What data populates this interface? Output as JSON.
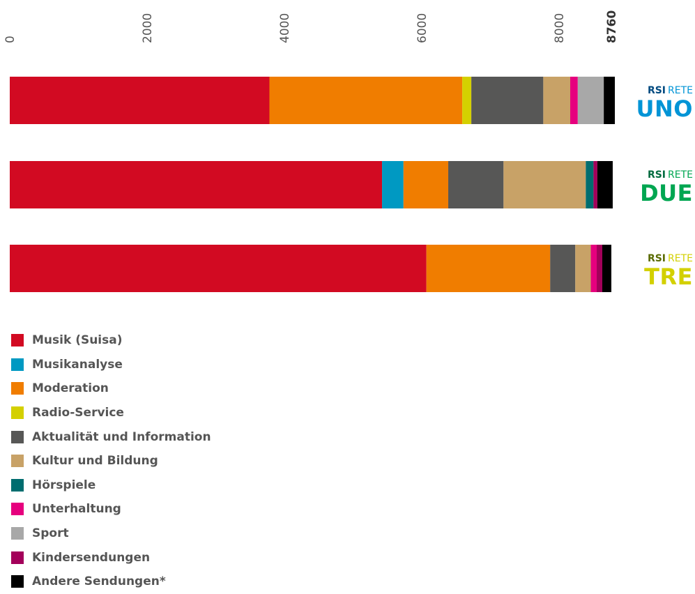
{
  "chart_data": {
    "type": "bar",
    "orientation": "horizontal",
    "stacked": true,
    "axis_position": "top",
    "xlim": [
      0,
      8760
    ],
    "x_ticks": [
      "0",
      "2000",
      "4000",
      "6000",
      "8000",
      "8760"
    ],
    "grid": false,
    "legend_position": "bottom-left",
    "stations": [
      {
        "rsi": "RSI",
        "rete": "RETE",
        "name": "UNO",
        "rsi_color": "#004a80",
        "name_color": "#0094d6"
      },
      {
        "rsi": "RSI",
        "rete": "RETE",
        "name": "DUE",
        "rsi_color": "#006b3f",
        "name_color": "#00a651"
      },
      {
        "rsi": "RSI",
        "rete": "RETE",
        "name": "TRE",
        "rsi_color": "#5a6b00",
        "name_color": "#d3d000"
      }
    ],
    "series": [
      {
        "name": "Musik (Suisa)",
        "color": "#d20a22",
        "values": [
          3781,
          5421,
          6067
        ]
      },
      {
        "name": "Musikanalyse",
        "color": "#0099c2",
        "values": [
          0,
          312,
          0
        ]
      },
      {
        "name": "Moderation",
        "color": "#f07d00",
        "values": [
          2808,
          652,
          1802
        ]
      },
      {
        "name": "Radio-Service",
        "color": "#d4d000",
        "values": [
          132,
          0,
          0
        ]
      },
      {
        "name": "Aktualität und Information",
        "color": "#575756",
        "values": [
          1048,
          805,
          366
        ]
      },
      {
        "name": "Kultur und Bildung",
        "color": "#c8a267",
        "values": [
          392,
          1198,
          226
        ]
      },
      {
        "name": "Hörspiele",
        "color": "#006d6f",
        "values": [
          0,
          112,
          0
        ]
      },
      {
        "name": "Unterhaltung",
        "color": "#e6007e",
        "values": [
          110,
          0,
          86
        ]
      },
      {
        "name": "Sport",
        "color": "#a8a8a8",
        "values": [
          379,
          0,
          0
        ]
      },
      {
        "name": "Kindersendungen",
        "color": "#a3005a",
        "values": [
          0,
          56,
          81
        ]
      },
      {
        "name": "Andere Sendungen*",
        "color": "#000000",
        "values": [
          161,
          224,
          132
        ]
      }
    ]
  }
}
